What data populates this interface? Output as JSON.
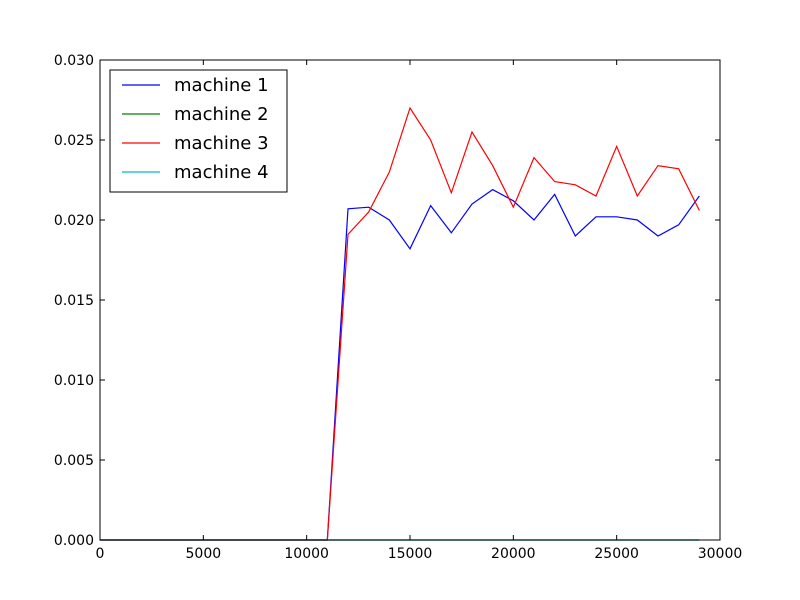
{
  "chart_data": {
    "type": "line",
    "title": "",
    "xlabel": "",
    "ylabel": "",
    "xlim": [
      0,
      30000
    ],
    "ylim": [
      0,
      0.03
    ],
    "x_ticks": [
      0,
      5000,
      10000,
      15000,
      20000,
      25000,
      30000
    ],
    "y_ticks": [
      0.0,
      0.005,
      0.01,
      0.015,
      0.02,
      0.025,
      0.03
    ],
    "x_tick_labels": [
      "0",
      "5000",
      "10000",
      "15000",
      "20000",
      "25000",
      "30000"
    ],
    "y_tick_labels": [
      "0.000",
      "0.005",
      "0.010",
      "0.015",
      "0.020",
      "0.025",
      "0.030"
    ],
    "grid": false,
    "legend_position": "top-left",
    "x": [
      0,
      1000,
      2000,
      3000,
      4000,
      5000,
      6000,
      7000,
      8000,
      9000,
      10000,
      11000,
      12000,
      13000,
      14000,
      15000,
      16000,
      17000,
      18000,
      19000,
      20000,
      21000,
      22000,
      23000,
      24000,
      25000,
      26000,
      27000,
      28000,
      29000
    ],
    "series": [
      {
        "name": "machine 1",
        "color": "#0000ff",
        "values": [
          0,
          0,
          0,
          0,
          0,
          0,
          0,
          0,
          0,
          0,
          0,
          0,
          0.0207,
          0.0208,
          0.02,
          0.0182,
          0.0209,
          0.0192,
          0.021,
          0.0219,
          0.0212,
          0.02,
          0.0216,
          0.019,
          0.0202,
          0.0202,
          0.02,
          0.019,
          0.0197,
          0.0215
        ]
      },
      {
        "name": "machine 2",
        "color": "#008000",
        "values": [
          0,
          0,
          0,
          0,
          0,
          0,
          0,
          0,
          0,
          0,
          0,
          0,
          0,
          0,
          0,
          0,
          0,
          0,
          0,
          0,
          0,
          0,
          0,
          0,
          0,
          0,
          0,
          0,
          0,
          0
        ]
      },
      {
        "name": "machine 3",
        "color": "#ff0000",
        "values": [
          0,
          0,
          0,
          0,
          0,
          0,
          0,
          0,
          0,
          0,
          0,
          0,
          0.0191,
          0.0205,
          0.023,
          0.027,
          0.025,
          0.0217,
          0.0255,
          0.0234,
          0.0208,
          0.0239,
          0.0224,
          0.0222,
          0.0215,
          0.0246,
          0.0215,
          0.0234,
          0.0232,
          0.0206
        ]
      },
      {
        "name": "machine 4",
        "color": "#00bfbf",
        "values": [
          0,
          0,
          0,
          0,
          0,
          0,
          0,
          0,
          0,
          0,
          0,
          0,
          0,
          0,
          0,
          0,
          0,
          0,
          0,
          0,
          0,
          0,
          0,
          0,
          0,
          0,
          0,
          0,
          0,
          0
        ]
      }
    ]
  }
}
